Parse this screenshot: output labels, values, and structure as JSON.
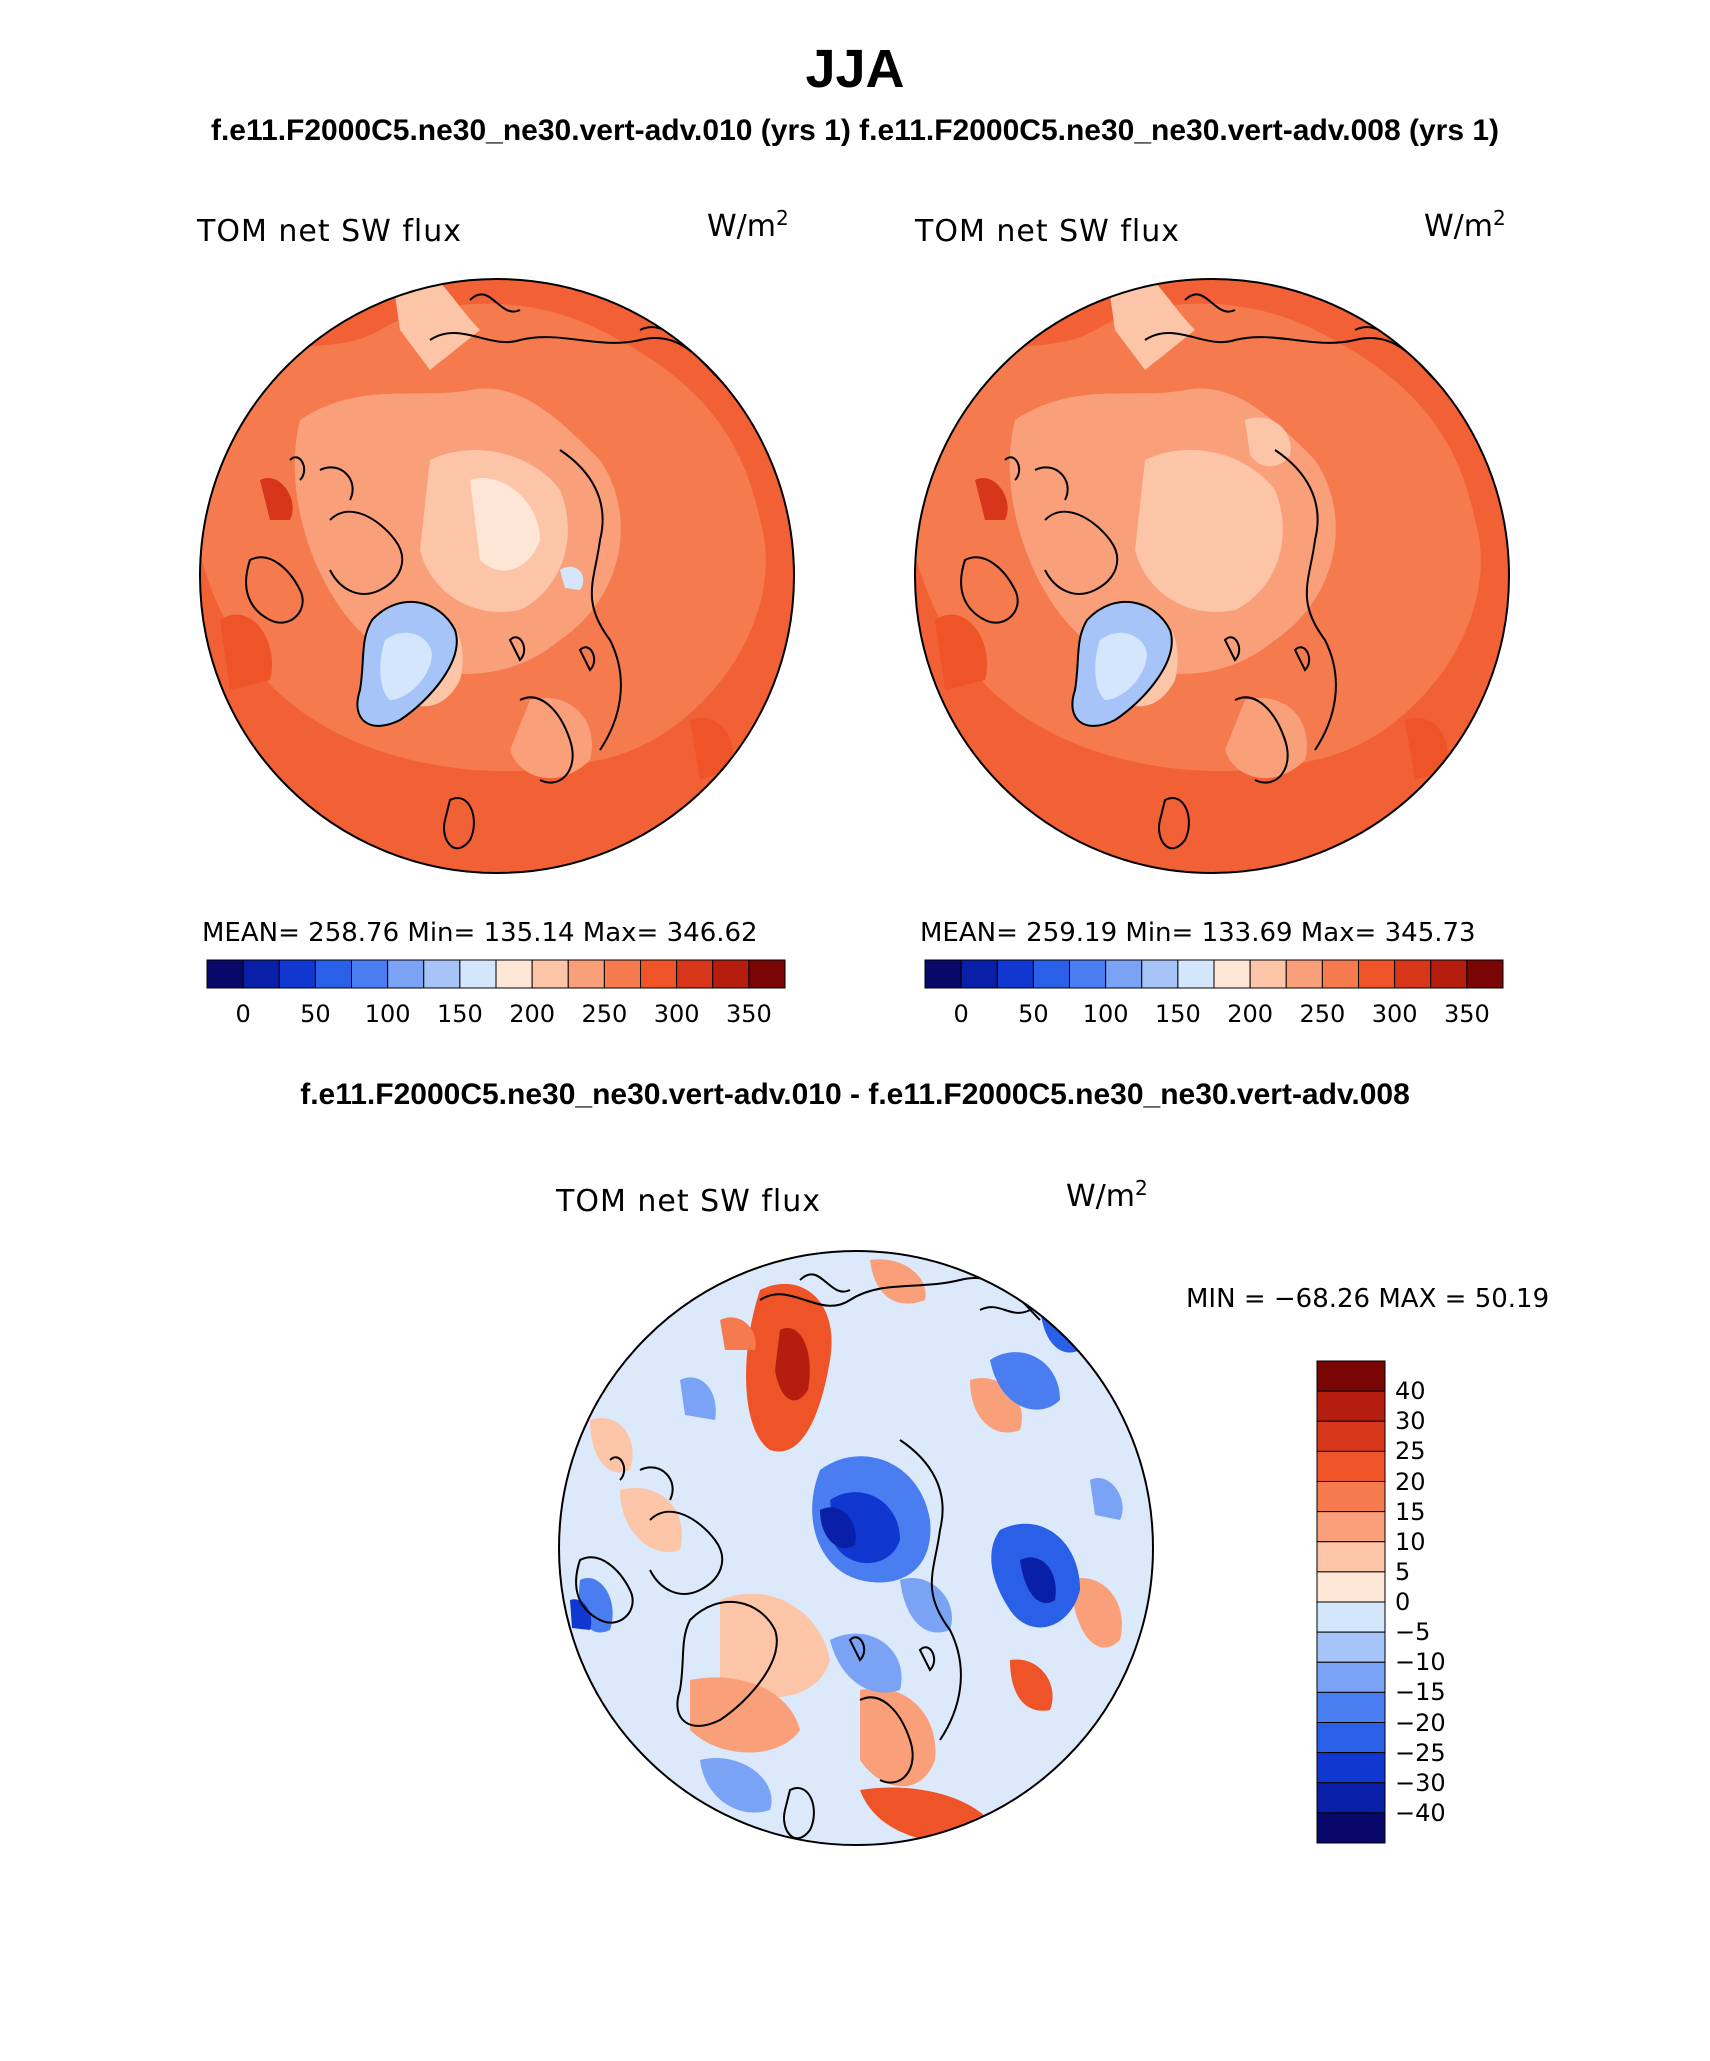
{
  "title": "JJA",
  "case_titles": "f.e11.F2000C5.ne30_ne30.vert-adv.010 (yrs 1) f.e11.F2000C5.ne30_ne30.vert-adv.008 (yrs 1)",
  "diff_title": "f.e11.F2000C5.ne30_ne30.vert-adv.010 - f.e11.F2000C5.ne30_ne30.vert-adv.008",
  "panels": [
    {
      "variable": "TOM net SW flux",
      "units": "W/m",
      "units_exp": "2",
      "stats": "MEAN= 258.76   Min= 135.14   Max= 346.62"
    },
    {
      "variable": "TOM net SW flux",
      "units": "W/m",
      "units_exp": "2",
      "stats": "MEAN= 259.19   Min= 133.69   Max= 345.73"
    }
  ],
  "diff_panel": {
    "variable": "TOM net SW flux",
    "units": "W/m",
    "units_exp": "2",
    "stats": "MIN = −68.26 MAX =   50.19"
  },
  "abs_colorbar": {
    "labels": [
      "0",
      "50",
      "100",
      "150",
      "200",
      "250",
      "300",
      "350"
    ],
    "colors": [
      "#08086b",
      "#0a1fa8",
      "#1038d0",
      "#2a5fe8",
      "#4a7ef0",
      "#7aa2f5",
      "#a6c4f8",
      "#d4e6fb",
      "#fde6d6",
      "#fcc5a8",
      "#f9a07a",
      "#f57a4e",
      "#ef5328",
      "#d8361a",
      "#b51e0e",
      "#7a0505"
    ]
  },
  "diff_colorbar": {
    "labels": [
      "40",
      "30",
      "25",
      "20",
      "15",
      "10",
      "5",
      "0",
      "−5",
      "−10",
      "−15",
      "−20",
      "−25",
      "−30",
      "−40"
    ],
    "colors": [
      "#7a0505",
      "#b51e0e",
      "#d8361a",
      "#ef5328",
      "#f57a4e",
      "#f9a07a",
      "#fcc5a8",
      "#fde6d6",
      "#d4e6fb",
      "#a6c4f8",
      "#7aa2f5",
      "#4a7ef0",
      "#2a5fe8",
      "#1038d0",
      "#0a1fa8",
      "#08086b"
    ]
  },
  "colors": {
    "abs_background": "#f26035",
    "diff_background": "#dce9fb"
  }
}
